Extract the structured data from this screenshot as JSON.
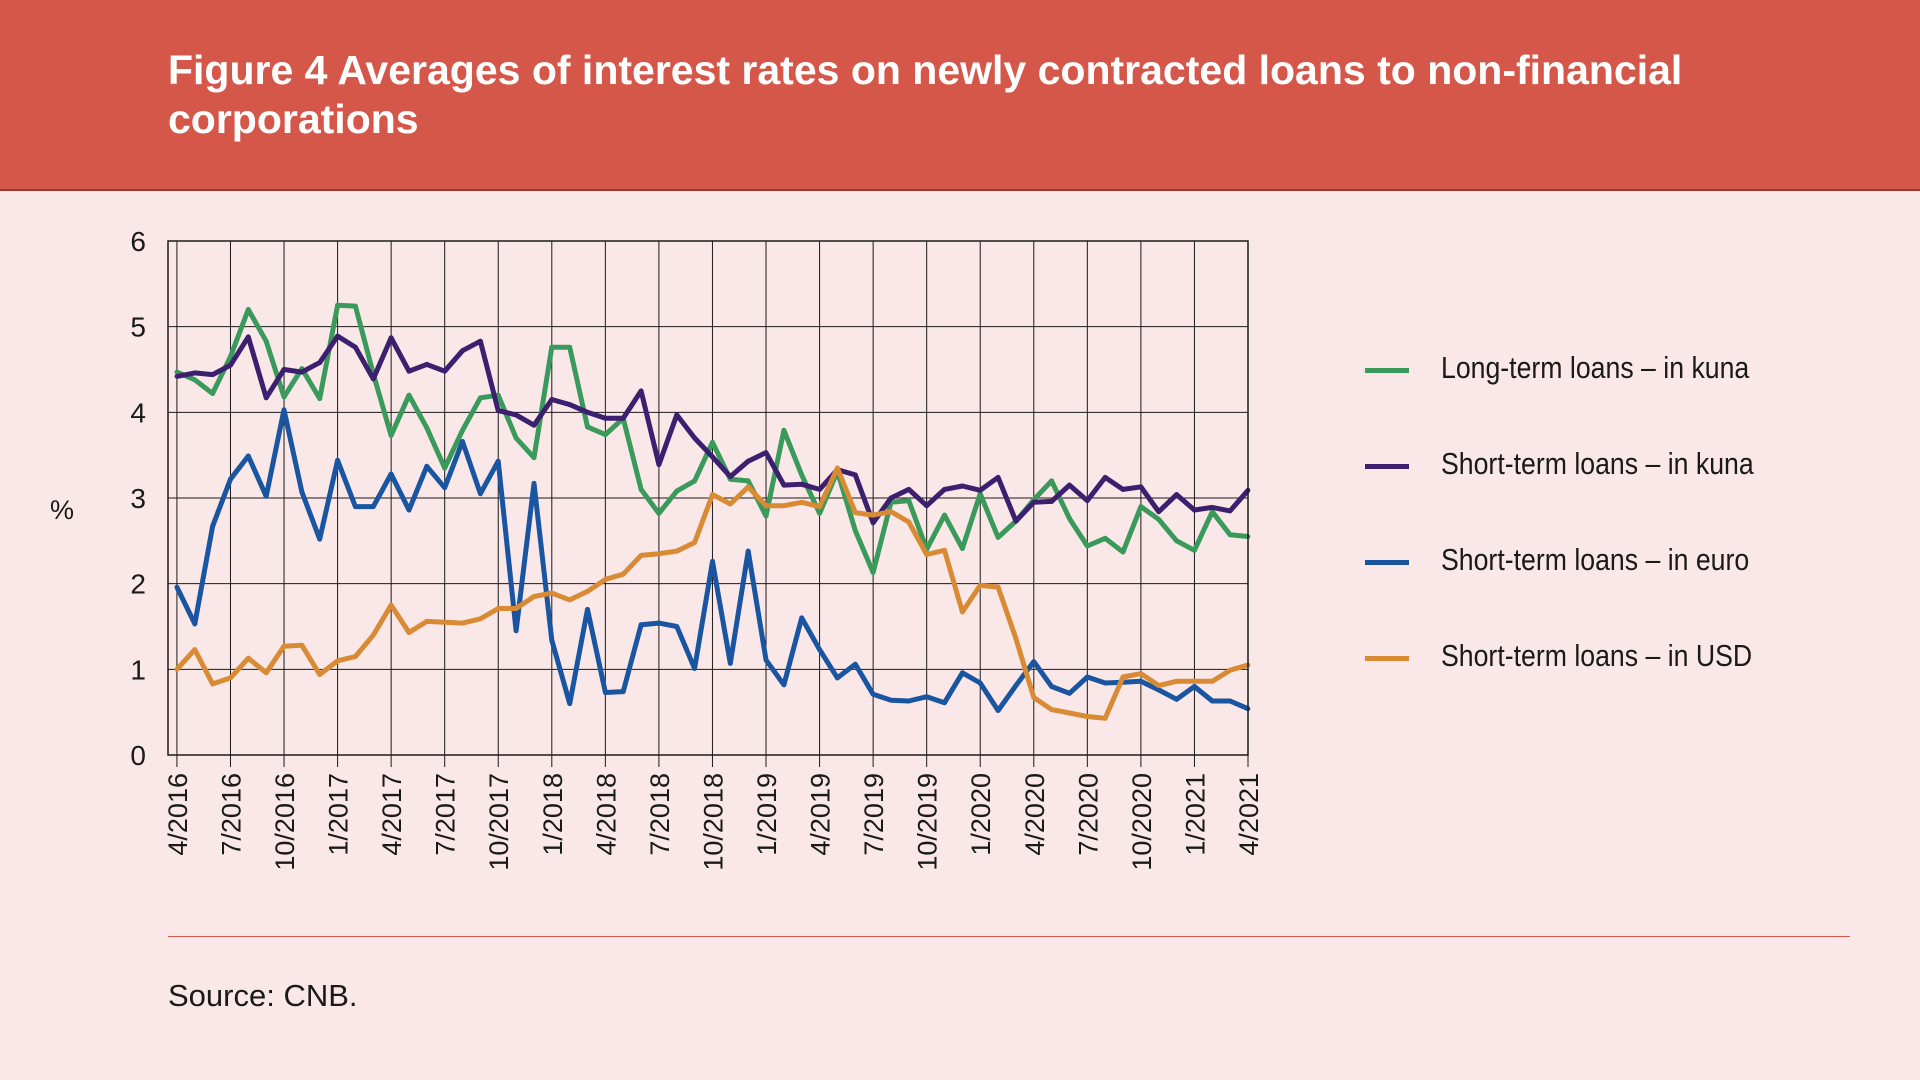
{
  "title": "Figure 4 Averages of interest rates on newly contracted loans to non-financial corporations",
  "source": "Source: CNB.",
  "chart_data": {
    "type": "line",
    "ylabel": "%",
    "ylim": [
      0,
      6
    ],
    "yticks": [
      "0",
      "1",
      "2",
      "3",
      "4",
      "5",
      "6"
    ],
    "grid": true,
    "legend_position": "right",
    "x": [
      "4/2016",
      "5/2016",
      "6/2016",
      "7/2016",
      "8/2016",
      "9/2016",
      "10/2016",
      "11/2016",
      "12/2016",
      "1/2017",
      "2/2017",
      "3/2017",
      "4/2017",
      "5/2017",
      "6/2017",
      "7/2017",
      "8/2017",
      "9/2017",
      "10/2017",
      "11/2017",
      "12/2017",
      "1/2018",
      "2/2018",
      "3/2018",
      "4/2018",
      "5/2018",
      "6/2018",
      "7/2018",
      "8/2018",
      "9/2018",
      "10/2018",
      "11/2018",
      "12/2018",
      "1/2019",
      "2/2019",
      "3/2019",
      "4/2019",
      "5/2019",
      "6/2019",
      "7/2019",
      "8/2019",
      "9/2019",
      "10/2019",
      "11/2019",
      "12/2019",
      "1/2020",
      "2/2020",
      "3/2020",
      "4/2020",
      "5/2020",
      "6/2020",
      "7/2020",
      "8/2020",
      "9/2020",
      "10/2020",
      "11/2020",
      "12/2020",
      "1/2021",
      "2/2021",
      "3/2021",
      "4/2021"
    ],
    "xtick_labels": [
      "4/2016",
      "7/2016",
      "10/2016",
      "1/2017",
      "4/2017",
      "7/2017",
      "10/2017",
      "1/2018",
      "4/2018",
      "7/2018",
      "10/2018",
      "1/2019",
      "4/2019",
      "7/2019",
      "10/2019",
      "1/2020",
      "4/2020",
      "7/2020",
      "10/2020",
      "1/2021",
      "4/2021"
    ],
    "series": [
      {
        "name": "Long-term loans – in kuna",
        "color": "#3a9a5c",
        "values": [
          4.47,
          4.38,
          4.22,
          4.65,
          5.2,
          4.83,
          4.18,
          4.51,
          4.16,
          5.25,
          5.24,
          4.45,
          3.73,
          4.2,
          3.82,
          3.35,
          3.79,
          4.17,
          4.2,
          3.7,
          3.47,
          4.76,
          4.76,
          3.83,
          3.74,
          3.93,
          3.1,
          2.82,
          3.08,
          3.2,
          3.65,
          3.22,
          3.2,
          2.79,
          3.79,
          3.27,
          2.82,
          3.31,
          2.62,
          2.13,
          2.95,
          2.97,
          2.4,
          2.8,
          2.41,
          3.05,
          2.54,
          2.73,
          2.98,
          3.2,
          2.76,
          2.44,
          2.53,
          2.37,
          2.9,
          2.75,
          2.5,
          2.39,
          2.84,
          2.57,
          2.55
        ]
      },
      {
        "name": "Short-term loans – in kuna",
        "color": "#3c1f6e",
        "values": [
          4.42,
          4.46,
          4.44,
          4.55,
          4.88,
          4.17,
          4.5,
          4.47,
          4.58,
          4.89,
          4.76,
          4.39,
          4.87,
          4.48,
          4.56,
          4.48,
          4.72,
          4.83,
          4.02,
          3.97,
          3.85,
          4.15,
          4.09,
          4.0,
          3.93,
          3.93,
          4.25,
          3.39,
          3.97,
          3.7,
          3.48,
          3.25,
          3.43,
          3.53,
          3.15,
          3.16,
          3.1,
          3.33,
          3.27,
          2.71,
          3.0,
          3.1,
          2.91,
          3.1,
          3.14,
          3.09,
          3.24,
          2.73,
          2.95,
          2.96,
          3.15,
          2.97,
          3.24,
          3.1,
          3.13,
          2.84,
          3.04,
          2.86,
          2.89,
          2.85,
          3.09
        ]
      },
      {
        "name": "Short-term loans – in euro",
        "color": "#1a55a1",
        "values": [
          1.96,
          1.53,
          2.67,
          3.22,
          3.49,
          3.02,
          4.03,
          3.07,
          2.52,
          3.44,
          2.9,
          2.9,
          3.28,
          2.86,
          3.37,
          3.12,
          3.66,
          3.05,
          3.43,
          1.45,
          3.17,
          1.34,
          0.6,
          1.7,
          0.73,
          0.74,
          1.52,
          1.54,
          1.5,
          1.01,
          2.26,
          1.07,
          2.38,
          1.11,
          0.82,
          1.6,
          1.23,
          0.9,
          1.06,
          0.71,
          0.64,
          0.63,
          0.68,
          0.61,
          0.96,
          0.84,
          0.52,
          0.81,
          1.09,
          0.8,
          0.72,
          0.91,
          0.84,
          0.85,
          0.86,
          0.76,
          0.65,
          0.8,
          0.63,
          0.63,
          0.54
        ]
      },
      {
        "name": "Short-term loans – in USD",
        "color": "#d98a34",
        "values": [
          1.0,
          1.23,
          0.83,
          0.9,
          1.13,
          0.96,
          1.27,
          1.28,
          0.94,
          1.1,
          1.15,
          1.4,
          1.75,
          1.43,
          1.56,
          1.55,
          1.54,
          1.59,
          1.71,
          1.71,
          1.85,
          1.89,
          1.81,
          1.91,
          2.05,
          2.11,
          2.33,
          2.35,
          2.38,
          2.48,
          3.04,
          2.93,
          3.13,
          2.91,
          2.91,
          2.95,
          2.9,
          3.35,
          2.83,
          2.8,
          2.84,
          2.72,
          2.34,
          2.39,
          1.67,
          1.98,
          1.96,
          1.36,
          0.67,
          0.53,
          0.49,
          0.45,
          0.43,
          0.91,
          0.95,
          0.81,
          0.86,
          0.86,
          0.86,
          0.99,
          1.05
        ]
      }
    ]
  }
}
